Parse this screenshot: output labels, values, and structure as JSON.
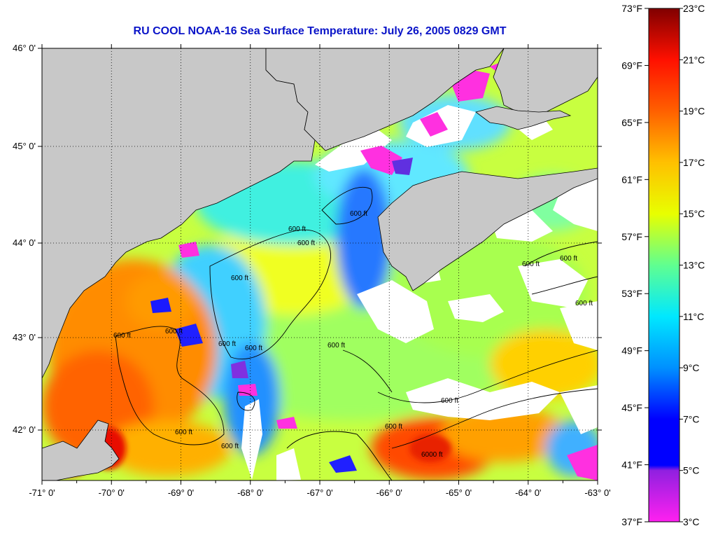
{
  "title": "RU COOL  NOAA-16  Sea Surface Temperature:  July 26, 2005 0829 GMT",
  "map": {
    "lon_range": [
      -71,
      -63
    ],
    "lat_range": [
      41.5,
      46.1
    ],
    "lon_ticks": [
      "-71° 0'",
      "-70° 0'",
      "-69° 0'",
      "-68° 0'",
      "-67° 0'",
      "-66° 0'",
      "-65° 0'",
      "-64° 0'",
      "-63° 0'"
    ],
    "lon_values": [
      -71,
      -70,
      -69,
      -68,
      -67,
      -66,
      -65,
      -64,
      -63
    ],
    "lat_ticks": [
      "46° 0'",
      "45° 0'",
      "44° 0'",
      "43° 0'",
      "42° 0'"
    ],
    "lat_values": [
      46,
      45,
      44,
      43,
      42
    ],
    "contour_labels": [
      "600 ft",
      "600 ft",
      "600 ft",
      "600 ft",
      "600 ft",
      "600 ft",
      "600 ft",
      "600 ft",
      "600 ft",
      "600 ft",
      "600 ft",
      "600 ft",
      "600 ft",
      "600 ft",
      "600 ft",
      "600 ft",
      "6000 ft"
    ],
    "colors": {
      "land": "#c8c8c8",
      "cloud": "#ffffff",
      "coast": "#000000"
    }
  },
  "colorbar": {
    "fahrenheit_labels": [
      "73°F",
      "69°F",
      "65°F",
      "61°F",
      "57°F",
      "53°F",
      "49°F",
      "45°F",
      "41°F",
      "37°F"
    ],
    "celsius_labels": [
      "23°C",
      "21°C",
      "19°C",
      "17°C",
      "15°C",
      "13°C",
      "11°C",
      "9°C",
      "7°C",
      "5°C",
      "3°C"
    ],
    "range_c": [
      3,
      23
    ],
    "stops": [
      "#ff20f0",
      "#9020e0",
      "#0000ff",
      "#0090ff",
      "#00e8ff",
      "#60ff90",
      "#e8ff00",
      "#ffc000",
      "#ff6000",
      "#ff1000",
      "#800000"
    ]
  }
}
